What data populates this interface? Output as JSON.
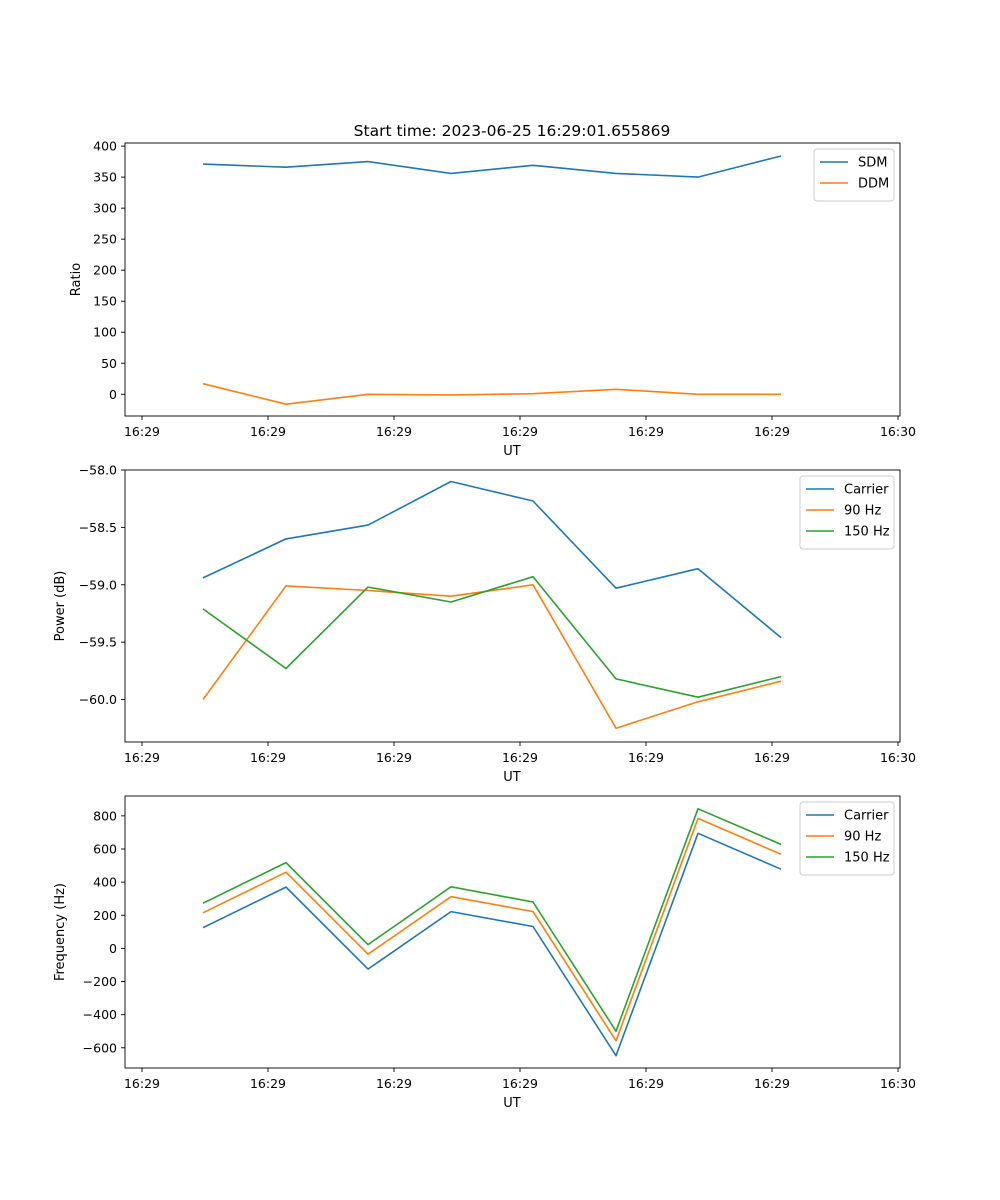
{
  "figure": {
    "title": "Start time: 2023-06-25 16:29:01.655869"
  },
  "chart_data": [
    {
      "type": "line",
      "title": "Start time: 2023-06-25 16:29:01.655869",
      "xlabel": "UT",
      "ylabel": "Ratio",
      "x_tick_labels": [
        "16:29",
        "16:29",
        "16:29",
        "16:29",
        "16:29",
        "16:29",
        "16:30"
      ],
      "y_ticks": [
        0,
        50,
        100,
        150,
        200,
        250,
        300,
        350,
        400
      ],
      "ylim": [
        -35,
        405
      ],
      "legend_position": "top-right",
      "series": [
        {
          "name": "SDM",
          "color": "#1f77b4",
          "values": [
            371,
            366,
            375,
            356,
            369,
            356,
            350,
            384
          ]
        },
        {
          "name": "DDM",
          "color": "#ff7f0e",
          "values": [
            17,
            -16,
            0,
            -1,
            1,
            8,
            0,
            0
          ]
        }
      ]
    },
    {
      "type": "line",
      "title": "",
      "xlabel": "UT",
      "ylabel": "Power (dB)",
      "x_tick_labels": [
        "16:29",
        "16:29",
        "16:29",
        "16:29",
        "16:29",
        "16:29",
        "16:30"
      ],
      "y_ticks": [
        -60.0,
        -59.5,
        -59.0,
        -58.5,
        -58.0
      ],
      "y_tick_labels": [
        "−60.0",
        "−59.5",
        "−59.0",
        "−58.5",
        "−58.0"
      ],
      "ylim": [
        -60.37,
        -58.0
      ],
      "legend_position": "top-right",
      "series": [
        {
          "name": "Carrier",
          "color": "#1f77b4",
          "values": [
            -58.94,
            -58.6,
            -58.48,
            -58.1,
            -58.27,
            -59.03,
            -58.86,
            -59.46
          ]
        },
        {
          "name": "90 Hz",
          "color": "#ff7f0e",
          "values": [
            -60.0,
            -59.01,
            -59.05,
            -59.1,
            -59.0,
            -60.25,
            -60.02,
            -59.84
          ]
        },
        {
          "name": "150 Hz",
          "color": "#2ca02c",
          "values": [
            -59.21,
            -59.73,
            -59.02,
            -59.15,
            -58.93,
            -59.82,
            -59.98,
            -59.8
          ]
        }
      ]
    },
    {
      "type": "line",
      "title": "",
      "xlabel": "UT",
      "ylabel": "Frequency (Hz)",
      "x_tick_labels": [
        "16:29",
        "16:29",
        "16:29",
        "16:29",
        "16:29",
        "16:29",
        "16:30"
      ],
      "y_ticks": [
        -600,
        -400,
        -200,
        0,
        200,
        400,
        600,
        800
      ],
      "y_tick_labels": [
        "−600",
        "−400",
        "−200",
        "0",
        "200",
        "400",
        "600",
        "800"
      ],
      "ylim": [
        -722,
        920
      ],
      "legend_position": "top-right",
      "series": [
        {
          "name": "Carrier",
          "color": "#1f77b4",
          "values": [
            125,
            370,
            -125,
            222,
            132,
            -648,
            695,
            478
          ]
        },
        {
          "name": "90 Hz",
          "color": "#ff7f0e",
          "values": [
            215,
            460,
            -35,
            312,
            222,
            -558,
            785,
            568
          ]
        },
        {
          "name": "150 Hz",
          "color": "#2ca02c",
          "values": [
            273,
            518,
            23,
            372,
            280,
            -500,
            843,
            628
          ]
        }
      ]
    }
  ]
}
